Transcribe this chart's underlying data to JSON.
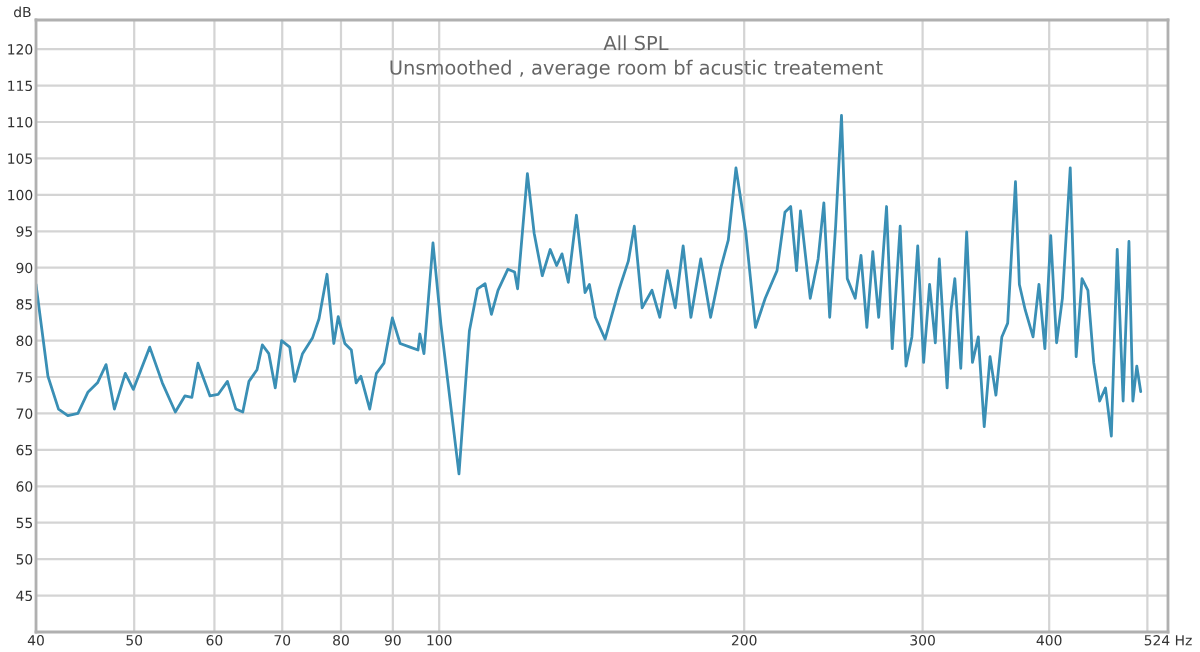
{
  "chart_data": {
    "type": "line",
    "title": "All SPL",
    "subtitle": "Unsmoothed , average room bf acustic treatement",
    "ylabel": "dB",
    "log": "x",
    "grid": true,
    "marker": "none",
    "line_style": "solid",
    "xlim": [
      40,
      524
    ],
    "xticks": [
      40,
      50,
      60,
      70,
      80,
      90,
      100,
      200,
      300,
      400,
      {
        "value": 500,
        "label": null
      },
      {
        "value": 524,
        "label": "524 Hz"
      }
    ],
    "ylim": [
      40,
      124
    ],
    "yticks": [
      45,
      50,
      55,
      60,
      65,
      70,
      75,
      80,
      85,
      90,
      95,
      100,
      105,
      110,
      115,
      120
    ],
    "series": [
      {
        "color": "#3a8fb5",
        "x": [
          40,
          41.1,
          42.1,
          43.0,
          44.0,
          45.0,
          46.0,
          46.9,
          47.8,
          49.0,
          49.9,
          51.8,
          53.3,
          54.9,
          56.1,
          57.0,
          57.8,
          59.4,
          60.5,
          61.8,
          63.0,
          64.0,
          64.9,
          66.1,
          66.9,
          67.9,
          68.9,
          69.9,
          71.2,
          72.0,
          73.3,
          75.0,
          76.1,
          77.5,
          78.7,
          79.5,
          80.7,
          81.9,
          82.8,
          83.7,
          85.4,
          86.7,
          88.2,
          89.9,
          91.5,
          93.6,
          95.3,
          95.7,
          96.6,
          98.6,
          100.4,
          104.6,
          107.1,
          109.1,
          111.0,
          112.6,
          114.3,
          116.9,
          118.7,
          119.5,
          122.2,
          124.1,
          126.4,
          128.7,
          130.6,
          132.2,
          134.1,
          136.6,
          139.3,
          140.7,
          142.6,
          145.8,
          150.4,
          153.7,
          155.8,
          158.6,
          162.2,
          165.1,
          168.0,
          171.0,
          174.1,
          177.2,
          181.2,
          185.3,
          189.5,
          192.9,
          196.3,
          200.7,
          205.2,
          209.8,
          215.5,
          219.4,
          222.3,
          225.3,
          227.3,
          232.4,
          236.6,
          239.7,
          242.9,
          246.2,
          249.5,
          252.8,
          257.4,
          260.8,
          264.3,
          267.9,
          271.5,
          276.4,
          280.0,
          285.1,
          288.9,
          292.8,
          296.7,
          300.7,
          304.8,
          308.8,
          311.6,
          317.2,
          320.0,
          322.8,
          327.2,
          331.6,
          336.0,
          340.5,
          345.1,
          349.7,
          354.4,
          359.2,
          364.0,
          370.5,
          373.8,
          378.8,
          385.6,
          390.8,
          396.1,
          401.4,
          406.8,
          412.2,
          419.6,
          425.3,
          431.0,
          436.8,
          442.6,
          448.6,
          454.6,
          460.7,
          466.9,
          473.2,
          479.5,
          483.8,
          488.1,
          492.5
        ],
        "values": [
          87.7,
          75.1,
          70.6,
          69.7,
          70.0,
          72.9,
          74.2,
          76.7,
          70.6,
          75.5,
          73.3,
          79.1,
          74.2,
          70.2,
          72.4,
          72.2,
          76.9,
          72.4,
          72.6,
          74.4,
          70.6,
          70.2,
          74.4,
          76.0,
          79.4,
          78.2,
          73.5,
          80.0,
          79.1,
          74.4,
          78.2,
          80.4,
          83.0,
          89.1,
          79.6,
          83.3,
          79.6,
          78.7,
          74.2,
          75.1,
          70.6,
          75.5,
          76.9,
          83.1,
          79.6,
          79.1,
          78.7,
          80.9,
          78.2,
          93.4,
          82.2,
          61.7,
          81.3,
          87.1,
          87.8,
          83.6,
          86.9,
          89.8,
          89.4,
          87.1,
          102.9,
          94.7,
          88.9,
          92.5,
          90.3,
          91.9,
          88.0,
          97.2,
          86.6,
          87.7,
          83.2,
          80.2,
          86.9,
          90.9,
          95.7,
          84.5,
          86.9,
          83.2,
          89.6,
          84.5,
          93.0,
          83.2,
          91.2,
          83.2,
          89.8,
          93.8,
          103.7,
          94.9,
          81.8,
          85.8,
          89.6,
          97.6,
          98.4,
          89.6,
          97.8,
          85.8,
          91.2,
          98.9,
          83.2,
          95.7,
          110.9,
          88.5,
          85.8,
          91.7,
          81.8,
          92.2,
          83.2,
          98.4,
          78.9,
          95.7,
          76.5,
          80.5,
          93.0,
          77.0,
          87.7,
          79.7,
          91.2,
          73.5,
          84.2,
          88.5,
          76.2,
          94.9,
          77.0,
          80.5,
          68.2,
          77.8,
          72.5,
          80.5,
          82.4,
          101.8,
          87.7,
          84.2,
          80.5,
          87.7,
          78.9,
          94.4,
          79.7,
          85.8,
          103.7,
          77.8,
          88.5,
          86.9,
          77.0,
          71.7,
          73.5,
          66.9,
          92.5,
          71.7,
          93.6,
          71.7,
          76.5,
          73.0
        ]
      }
    ]
  }
}
